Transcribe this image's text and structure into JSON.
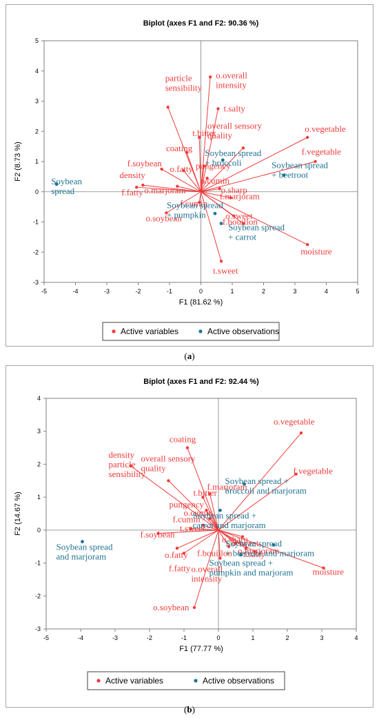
{
  "captions": {
    "a": "a",
    "b": "b"
  },
  "colors": {
    "variables": "#f03b3b",
    "observations": "#1f7391",
    "grid": "#d9d9d9",
    "axis": "#7f7f7f"
  },
  "chart_data": [
    {
      "type": "scatter",
      "title": "Biplot (axes F1 and F2: 90.36 %)",
      "xlabel": "F1 (81.62 %)",
      "ylabel": "F2 (8.73 %)",
      "xlim": [
        -5,
        5
      ],
      "ylim": [
        -3,
        5
      ],
      "xticks": [
        "-5",
        "-4",
        "-3",
        "-2",
        "-1",
        "0",
        "1",
        "2",
        "3",
        "4",
        "5"
      ],
      "yticks": [
        "-3",
        "-2",
        "-1",
        "0",
        "1",
        "2",
        "3",
        "4",
        "5"
      ],
      "grid": false,
      "legend_position": "bottom",
      "legend": [
        "Active variables",
        "Active observations"
      ],
      "variables": [
        {
          "name": "o.overall intensity",
          "lines": [
            "o.overall",
            "intensity"
          ],
          "x": 0.3,
          "y": 3.8
        },
        {
          "name": "t.salty",
          "lines": [
            "t.salty"
          ],
          "x": 0.55,
          "y": 2.75
        },
        {
          "name": "particle sensibility",
          "lines": [
            "particle",
            "sensibility"
          ],
          "x": -1.05,
          "y": 2.8
        },
        {
          "name": "t.bitter",
          "lines": [
            "t.bitter"
          ],
          "x": -0.05,
          "y": 1.8
        },
        {
          "name": "overall sensory quality",
          "lines": [
            "overall sensory",
            "quality"
          ],
          "x": 1.35,
          "y": 1.45
        },
        {
          "name": "o.vegetable",
          "lines": [
            "o.vegetable"
          ],
          "x": 3.4,
          "y": 1.8
        },
        {
          "name": "f.vegetable",
          "lines": [
            "f.vegetable"
          ],
          "x": 3.65,
          "y": 1.0
        },
        {
          "name": "coating",
          "lines": [
            "coating"
          ],
          "x": -0.45,
          "y": 1.3
        },
        {
          "name": "pungency",
          "lines": [
            "pungency"
          ],
          "x": 0.1,
          "y": 0.85
        },
        {
          "name": "f.soybean",
          "lines": [
            "f.soybean"
          ],
          "x": -1.25,
          "y": 0.75
        },
        {
          "name": "o.fatty",
          "lines": [
            "o.fatty"
          ],
          "x": -0.55,
          "y": 0.7
        },
        {
          "name": "o.cumin",
          "lines": [
            "o.cumin"
          ],
          "x": 0.2,
          "y": 0.45
        },
        {
          "name": "o.sharp",
          "lines": [
            "o.sharp"
          ],
          "x": 0.6,
          "y": 0.1
        },
        {
          "name": "density",
          "lines": [
            "density"
          ],
          "x": -1.85,
          "y": 0.22
        },
        {
          "name": "o.marjoram",
          "lines": [
            "o.marjoram"
          ],
          "x": -0.75,
          "y": 0.18
        },
        {
          "name": "f.fatty",
          "lines": [
            "f.fatty"
          ],
          "x": -2.05,
          "y": 0.15
        },
        {
          "name": "f.marjoram",
          "lines": [
            "f.marjoram"
          ],
          "x": 0.95,
          "y": -0.2
        },
        {
          "name": "f.cumin",
          "lines": [
            "f.cumin"
          ],
          "x": -0.05,
          "y": -0.35
        },
        {
          "name": "o.soybean",
          "lines": [
            "o.soybean"
          ],
          "x": -1.1,
          "y": -0.7
        },
        {
          "name": "o.sweet",
          "lines": [
            "o.sweet"
          ],
          "x": 1.05,
          "y": -0.8
        },
        {
          "name": "f.bouillon",
          "lines": [
            "f.bouillon"
          ],
          "x": 1.35,
          "y": -1.05
        },
        {
          "name": "moisture",
          "lines": [
            "moisture"
          ],
          "x": 3.4,
          "y": -1.75
        },
        {
          "name": "t.sweet",
          "lines": [
            "t.sweet"
          ],
          "x": 0.65,
          "y": -2.3
        }
      ],
      "observations": [
        {
          "name": "Soybean spread",
          "lines": [
            "Soybean",
            "spread"
          ],
          "x": -4.6,
          "y": 0.25
        },
        {
          "name": "Soybean spread + broccoli",
          "lines": [
            "Soybean spread",
            "+ broccoli"
          ],
          "x": 0.7,
          "y": 1.05
        },
        {
          "name": "Soybean spread + beetroot",
          "lines": [
            "Soybean spread",
            "+ beetroot"
          ],
          "x": 2.65,
          "y": 0.55
        },
        {
          "name": "Soybean spread + pumpkin",
          "lines": [
            "Soybean spread",
            "+ pumpkin"
          ],
          "x": 0.45,
          "y": -0.72
        },
        {
          "name": "Soybean spread + carrot",
          "lines": [
            "Soybean spread",
            "+ carrot"
          ],
          "x": 0.65,
          "y": -1.05
        }
      ]
    },
    {
      "type": "scatter",
      "title": "Biplot (axes F1 and F2: 92.44 %)",
      "xlabel": "F1 (77.77 %)",
      "ylabel": "F2 (14.67 %)",
      "xlim": [
        -5,
        4
      ],
      "ylim": [
        -3,
        4
      ],
      "xticks": [
        "-5",
        "-4",
        "-3",
        "-2",
        "-1",
        "0",
        "1",
        "2",
        "3",
        "4"
      ],
      "yticks": [
        "-3",
        "-2",
        "-1",
        "0",
        "1",
        "2",
        "3",
        "4"
      ],
      "grid": false,
      "legend_position": "bottom",
      "legend": [
        "Active variables",
        "Active observations"
      ],
      "variables": [
        {
          "name": "o.vegetable",
          "lines": [
            "o.vegetable"
          ],
          "x": 2.4,
          "y": 2.95
        },
        {
          "name": "coating",
          "lines": [
            "coating"
          ],
          "x": -0.9,
          "y": 2.5
        },
        {
          "name": "f.vegetable",
          "lines": [
            "f.vegetable"
          ],
          "x": 2.25,
          "y": 1.7
        },
        {
          "name": "density particle sensibility",
          "lines": [
            "density",
            "particle",
            "sensibility"
          ],
          "x": -2.55,
          "y": 1.95
        },
        {
          "name": "overall sensory quality",
          "lines": [
            "overall sensory",
            "quality"
          ],
          "x": -1.45,
          "y": 1.5
        },
        {
          "name": "f.marjoram",
          "lines": [
            "f.marjoram"
          ],
          "x": -0.25,
          "y": 1.1
        },
        {
          "name": "t.bitter",
          "lines": [
            "t.bitter"
          ],
          "x": -0.45,
          "y": 1.0
        },
        {
          "name": "pungency",
          "lines": [
            "pungency"
          ],
          "x": -0.35,
          "y": 0.6
        },
        {
          "name": "o.cumin",
          "lines": [
            "o.cumin"
          ],
          "x": -0.25,
          "y": 0.35
        },
        {
          "name": "f.cumin",
          "lines": [
            "f.cumin"
          ],
          "x": -0.45,
          "y": 0.15
        },
        {
          "name": "t.sweet",
          "lines": [
            "t.sweet"
          ],
          "x": -0.8,
          "y": 0.05
        },
        {
          "name": "f.soybean",
          "lines": [
            "f.soybean"
          ],
          "x": -1.75,
          "y": -0.1
        },
        {
          "name": "o.sharp",
          "lines": [
            "o.sharp"
          ],
          "x": 0.7,
          "y": -0.2
        },
        {
          "name": "o.fatty",
          "lines": [
            "o.fatty"
          ],
          "x": -1.2,
          "y": -0.55
        },
        {
          "name": "f.fatty",
          "lines": [
            "f.fatty"
          ],
          "x": -1.0,
          "y": -0.7
        },
        {
          "name": "o.sweet",
          "lines": [
            "o.sweet"
          ],
          "x": 0.5,
          "y": -0.4
        },
        {
          "name": "f.bouillon",
          "lines": [
            "f.bouillon"
          ],
          "x": 0.3,
          "y": -0.5
        },
        {
          "name": "o.marjoram",
          "lines": [
            "o.marjoram"
          ],
          "x": 0.8,
          "y": -0.55
        },
        {
          "name": "o.overall intensity",
          "lines": [
            "o.overall",
            "intensity"
          ],
          "x": 0.05,
          "y": -0.85
        },
        {
          "name": "t.salty",
          "lines": [
            "t.salty"
          ],
          "x": 1.05,
          "y": -0.65
        },
        {
          "name": "moisture",
          "lines": [
            "moisture"
          ],
          "x": 3.05,
          "y": -1.15
        },
        {
          "name": "o.soybean",
          "lines": [
            "o.soybean"
          ],
          "x": -0.7,
          "y": -2.35
        }
      ],
      "observations": [
        {
          "name": "Soybean spread and marjoram",
          "lines": [
            "Soybean spread",
            "and marjoram"
          ],
          "x": -3.95,
          "y": -0.35
        },
        {
          "name": "Soybean spread + broccoli and marjoram",
          "lines": [
            "Soybean spread +",
            "broccoli and marjoram"
          ],
          "x": 0.75,
          "y": 1.4
        },
        {
          "name": "Soybean spread + carrot and marjoram",
          "lines": [
            "Soybean spread +",
            "carrot and marjoram"
          ],
          "x": 0.05,
          "y": 0.6
        },
        {
          "name": "Soybean spread + beetroot and marjoram",
          "lines": [
            "Soybean spread",
            "+ beetroot and marjoram"
          ],
          "x": 1.6,
          "y": -0.45
        },
        {
          "name": "Soybean spread + pumpkin and marjoram",
          "lines": [
            "Soybean spread +",
            "pumpkin and marjoram"
          ],
          "x": 0.65,
          "y": -0.75
        }
      ]
    }
  ]
}
